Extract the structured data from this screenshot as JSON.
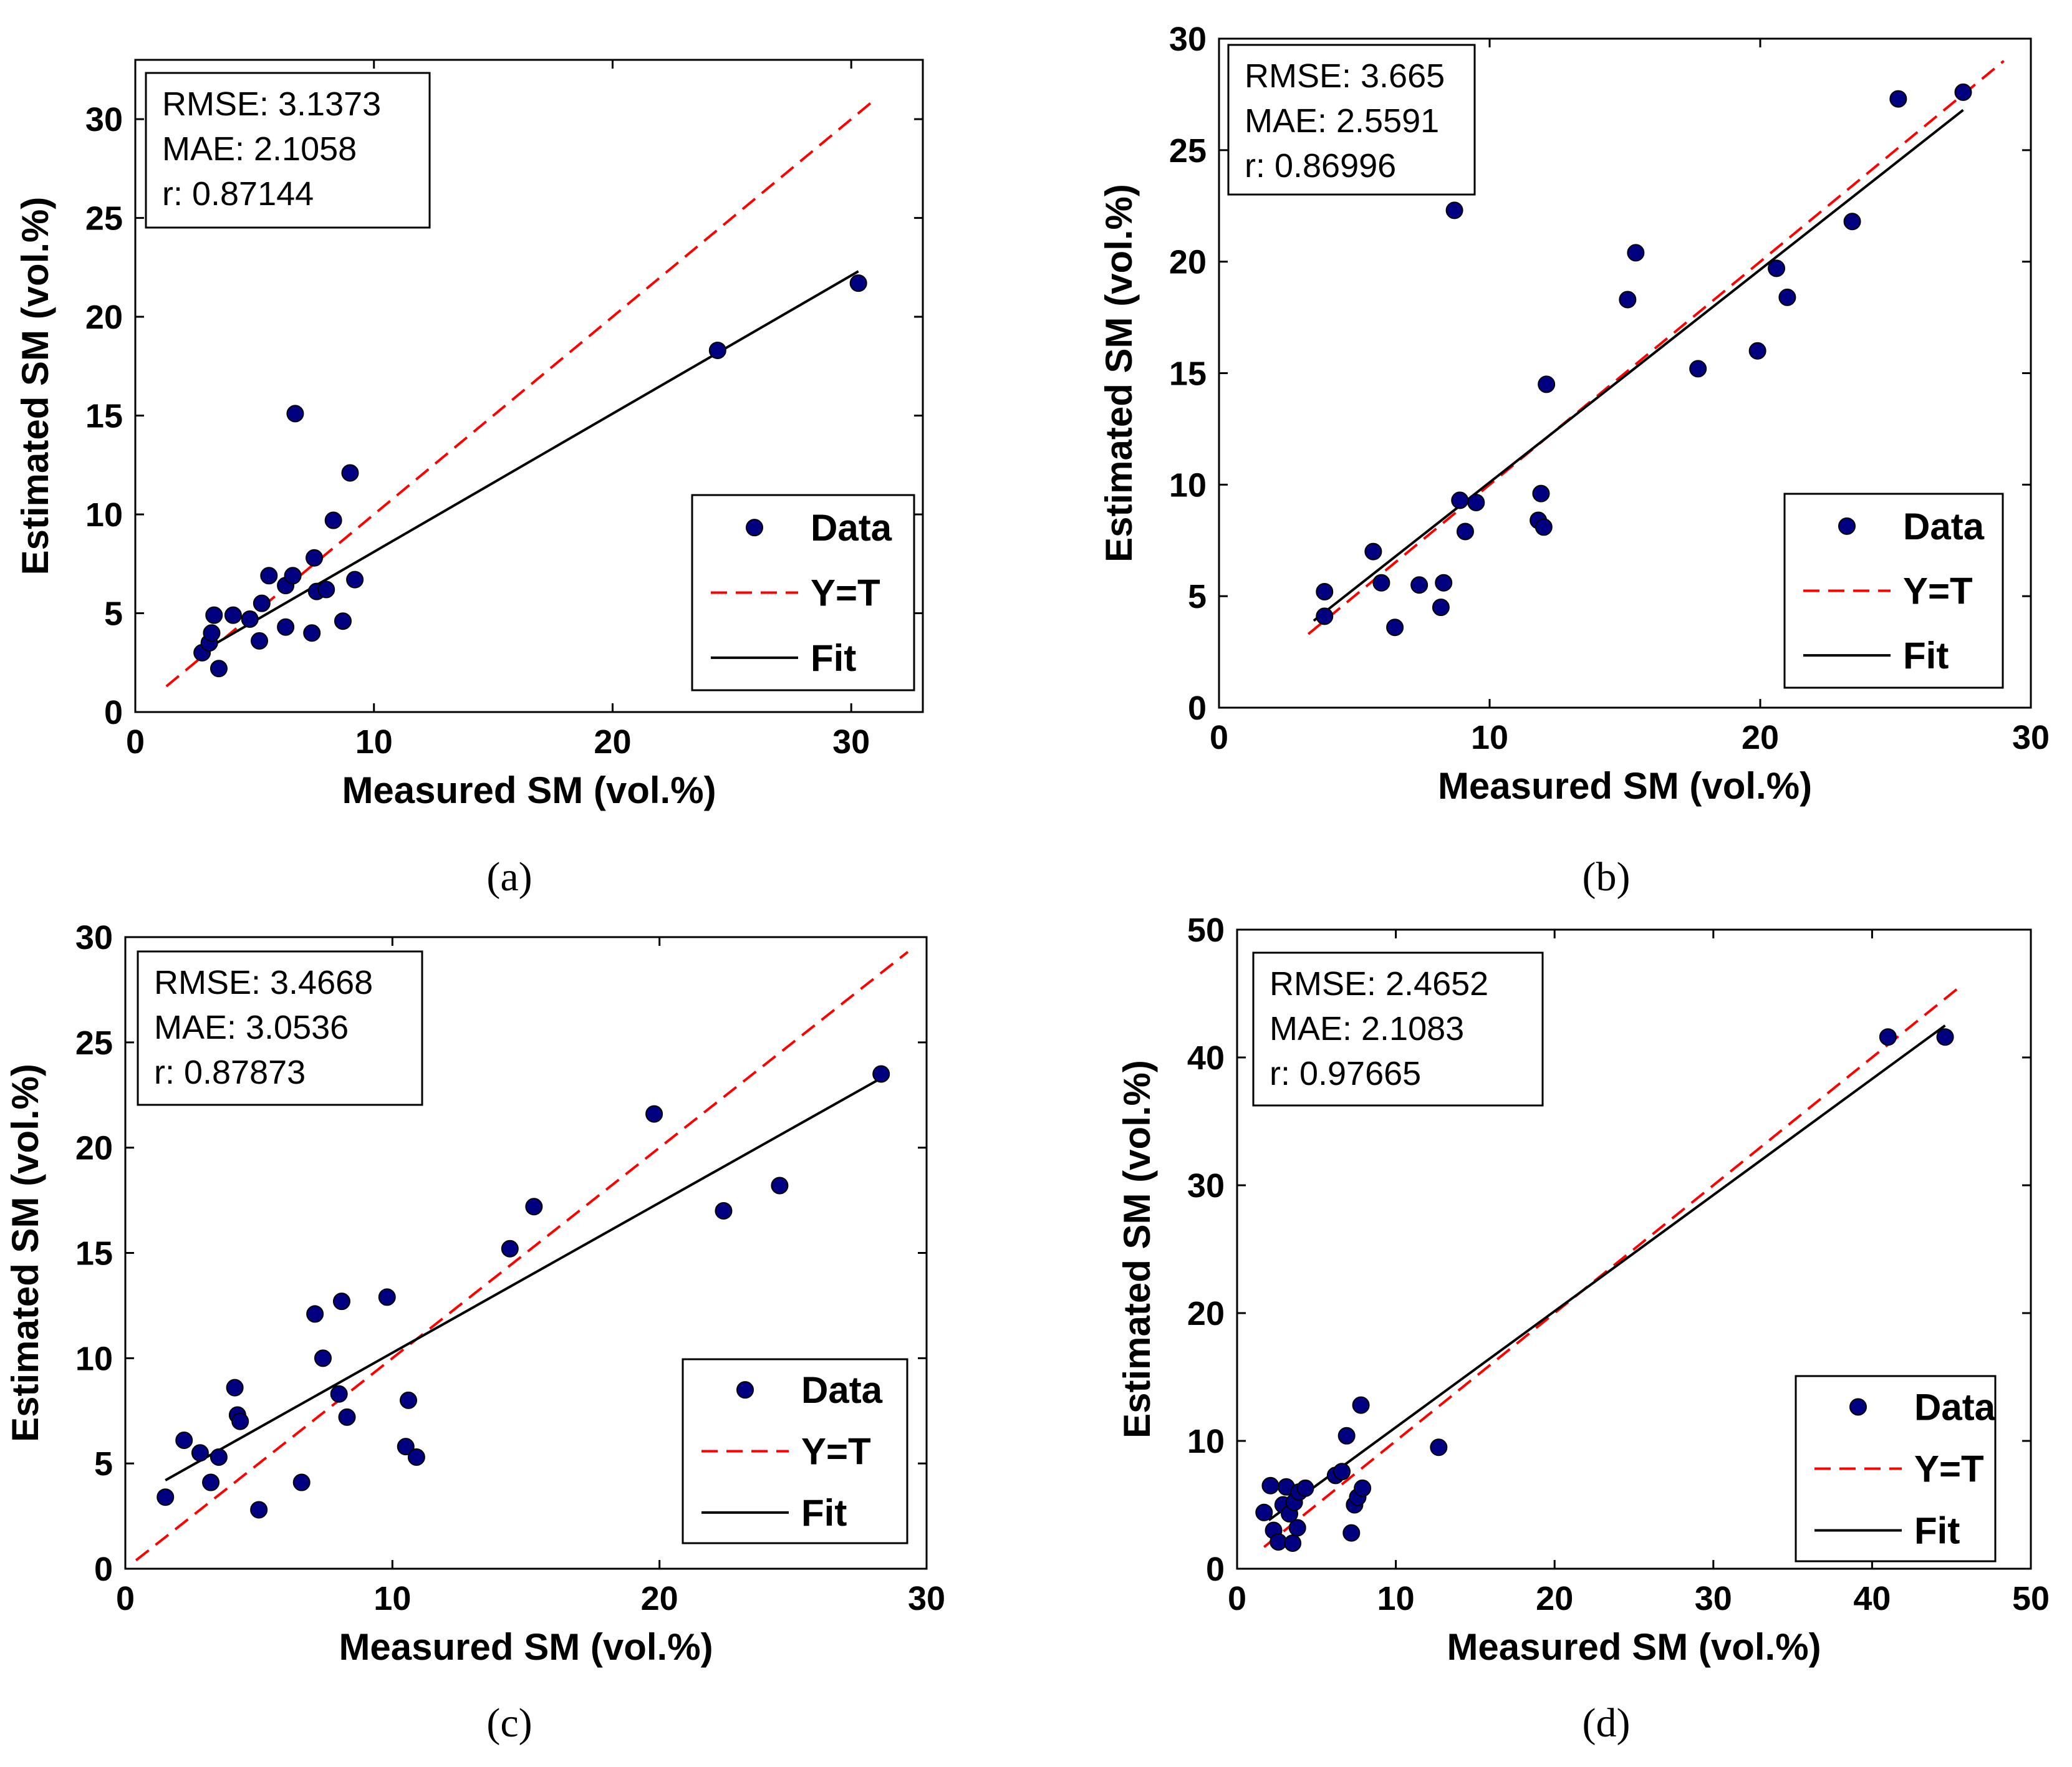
{
  "chart_data": [
    {
      "type": "scatter",
      "panel": "a",
      "caption": "(a)",
      "xlabel": "Measured SM (vol.%)",
      "ylabel": "Estimated SM (vol.%)",
      "xlim": [
        0,
        33
      ],
      "ylim": [
        0,
        33
      ],
      "xticks": [
        0,
        10,
        20,
        30
      ],
      "yticks": [
        0,
        5,
        10,
        15,
        20,
        25,
        30
      ],
      "stats": [
        "RMSE: 3.1373",
        "MAE: 2.1058",
        "r: 0.87144"
      ],
      "legend": [
        "Data",
        "Y=T",
        "Fit"
      ],
      "points": [
        [
          2.8,
          3.0
        ],
        [
          3.1,
          3.5
        ],
        [
          3.2,
          4.0
        ],
        [
          3.3,
          4.9
        ],
        [
          3.5,
          2.2
        ],
        [
          4.1,
          4.9
        ],
        [
          4.8,
          4.7
        ],
        [
          5.2,
          3.6
        ],
        [
          5.3,
          5.5
        ],
        [
          5.6,
          6.9
        ],
        [
          6.3,
          4.3
        ],
        [
          6.3,
          6.4
        ],
        [
          6.6,
          6.9
        ],
        [
          6.7,
          15.1
        ],
        [
          7.4,
          4.0
        ],
        [
          7.5,
          7.8
        ],
        [
          7.6,
          6.1
        ],
        [
          8.0,
          6.2
        ],
        [
          8.3,
          9.7
        ],
        [
          8.7,
          4.6
        ],
        [
          9.0,
          12.1
        ],
        [
          9.2,
          6.7
        ],
        [
          24.4,
          18.3
        ],
        [
          30.3,
          21.7
        ]
      ],
      "ref_line": [
        [
          1.3,
          1.3
        ],
        [
          31.0,
          31.0
        ]
      ],
      "fit_line": [
        [
          2.7,
          3.0
        ],
        [
          30.3,
          22.3
        ]
      ]
    },
    {
      "type": "scatter",
      "panel": "b",
      "caption": "(b)",
      "xlabel": "Measured SM (vol.%)",
      "ylabel": "Estimated SM (vol.%)",
      "xlim": [
        0,
        30
      ],
      "ylim": [
        0,
        30
      ],
      "xticks": [
        0,
        10,
        20,
        30
      ],
      "yticks": [
        0,
        5,
        10,
        15,
        20,
        25,
        30
      ],
      "stats": [
        "RMSE: 3.665",
        "MAE: 2.5591",
        "r: 0.86996"
      ],
      "legend": [
        "Data",
        "Y=T",
        "Fit"
      ],
      "points": [
        [
          3.9,
          5.2
        ],
        [
          3.9,
          4.1
        ],
        [
          5.7,
          7.0
        ],
        [
          6.0,
          5.6
        ],
        [
          6.5,
          3.6
        ],
        [
          7.4,
          5.5
        ],
        [
          8.2,
          4.5
        ],
        [
          8.3,
          5.6
        ],
        [
          8.7,
          22.3
        ],
        [
          8.9,
          9.3
        ],
        [
          9.1,
          7.9
        ],
        [
          9.5,
          9.2
        ],
        [
          11.8,
          8.4
        ],
        [
          11.9,
          9.6
        ],
        [
          12.0,
          8.1
        ],
        [
          12.1,
          14.5
        ],
        [
          15.1,
          18.3
        ],
        [
          15.4,
          20.4
        ],
        [
          17.7,
          15.2
        ],
        [
          19.9,
          16.0
        ],
        [
          20.6,
          19.7
        ],
        [
          21.0,
          18.4
        ],
        [
          23.4,
          21.8
        ],
        [
          25.1,
          27.3
        ],
        [
          27.5,
          27.6
        ]
      ],
      "ref_line": [
        [
          3.3,
          3.3
        ],
        [
          29.0,
          29.0
        ]
      ],
      "fit_line": [
        [
          3.5,
          3.9
        ],
        [
          27.5,
          26.8
        ]
      ]
    },
    {
      "type": "scatter",
      "panel": "c",
      "caption": "(c)",
      "xlabel": "Measured SM (vol.%)",
      "ylabel": "Estimated SM (vol.%)",
      "xlim": [
        0,
        30
      ],
      "ylim": [
        0,
        30
      ],
      "xticks": [
        0,
        10,
        20,
        30
      ],
      "yticks": [
        0,
        5,
        10,
        15,
        20,
        25,
        30
      ],
      "stats": [
        "RMSE: 3.4668",
        "MAE: 3.0536",
        "r: 0.87873"
      ],
      "legend": [
        "Data",
        "Y=T",
        "Fit"
      ],
      "points": [
        [
          1.5,
          3.4
        ],
        [
          2.2,
          6.1
        ],
        [
          2.8,
          5.5
        ],
        [
          3.2,
          4.1
        ],
        [
          3.5,
          5.3
        ],
        [
          4.1,
          8.6
        ],
        [
          4.2,
          7.3
        ],
        [
          4.3,
          7.0
        ],
        [
          5.0,
          2.8
        ],
        [
          6.6,
          4.1
        ],
        [
          7.1,
          12.1
        ],
        [
          7.4,
          10.0
        ],
        [
          8.0,
          8.3
        ],
        [
          8.1,
          12.7
        ],
        [
          8.3,
          7.2
        ],
        [
          9.8,
          12.9
        ],
        [
          10.5,
          5.8
        ],
        [
          10.6,
          8.0
        ],
        [
          10.9,
          5.3
        ],
        [
          14.4,
          15.2
        ],
        [
          15.3,
          17.2
        ],
        [
          19.8,
          21.6
        ],
        [
          22.4,
          17.0
        ],
        [
          24.5,
          18.2
        ],
        [
          28.3,
          23.5
        ]
      ],
      "ref_line": [
        [
          0.4,
          0.4
        ],
        [
          29.3,
          29.3
        ]
      ],
      "fit_line": [
        [
          1.5,
          4.2
        ],
        [
          28.3,
          23.3
        ]
      ]
    },
    {
      "type": "scatter",
      "panel": "d",
      "caption": "(d)",
      "xlabel": "Measured SM (vol.%)",
      "ylabel": "Estimated SM (vol.%)",
      "xlim": [
        0,
        50
      ],
      "ylim": [
        0,
        50
      ],
      "xticks": [
        0,
        10,
        20,
        30,
        40,
        50
      ],
      "yticks": [
        0,
        10,
        20,
        30,
        40,
        50
      ],
      "stats": [
        "RMSE: 2.4652",
        "MAE: 2.1083",
        "r: 0.97665"
      ],
      "legend": [
        "Data",
        "Y=T",
        "Fit"
      ],
      "points": [
        [
          1.7,
          4.4
        ],
        [
          2.1,
          6.5
        ],
        [
          2.3,
          3.0
        ],
        [
          2.6,
          2.1
        ],
        [
          2.9,
          5.0
        ],
        [
          3.1,
          6.4
        ],
        [
          3.3,
          4.3
        ],
        [
          3.5,
          2.0
        ],
        [
          3.6,
          5.2
        ],
        [
          3.8,
          3.2
        ],
        [
          3.9,
          6.0
        ],
        [
          4.3,
          6.3
        ],
        [
          6.2,
          7.3
        ],
        [
          6.6,
          7.6
        ],
        [
          6.9,
          10.4
        ],
        [
          7.2,
          2.8
        ],
        [
          7.4,
          5.0
        ],
        [
          7.6,
          5.6
        ],
        [
          7.8,
          12.8
        ],
        [
          7.9,
          6.3
        ],
        [
          12.7,
          9.5
        ],
        [
          41.0,
          41.6
        ],
        [
          44.6,
          41.6
        ]
      ],
      "ref_line": [
        [
          1.7,
          1.7
        ],
        [
          45.7,
          45.7
        ]
      ],
      "fit_line": [
        [
          2.0,
          3.8
        ],
        [
          44.6,
          42.5
        ]
      ]
    }
  ]
}
